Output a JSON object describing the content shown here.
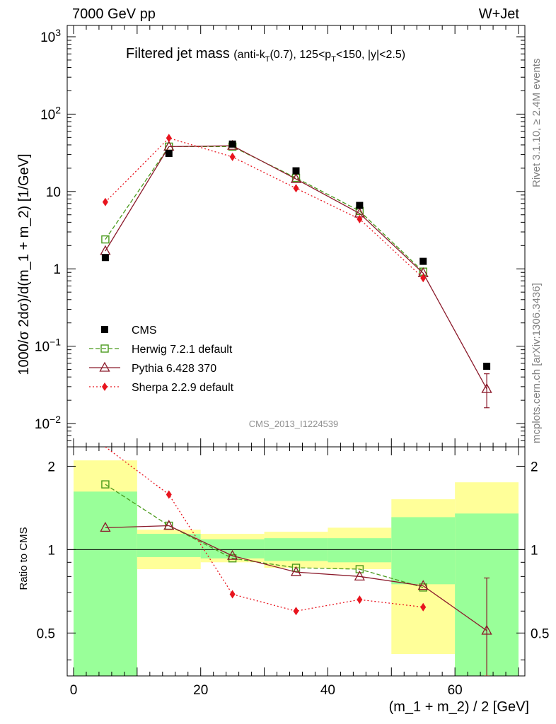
{
  "header": {
    "left": "7000 GeV pp",
    "right": "W+Jet"
  },
  "title": {
    "main": "Filtered jet mass",
    "sub_parts": [
      "(anti-k",
      "T",
      "(0.7), 125<p",
      "T",
      "<150, |y|<2.5)"
    ]
  },
  "side_labels": {
    "rivet": "Rivet 3.1.10, ≥ 2.4M events",
    "mcplots": "mcplots.cern.ch [arXiv:1306.3436]"
  },
  "watermark": "CMS_2013_I1224539",
  "axes": {
    "ylabel_main": "1000/σ 2dσ)/d(m_1 + m_2) [1/GeV]",
    "ylabel_ratio": "Ratio to CMS",
    "xlabel": "(m_1 + m_2) / 2 [GeV]",
    "x_ticks": [
      "0",
      "20",
      "40",
      "60"
    ],
    "main_ticks": [
      {
        "base": "10",
        "exp": "3"
      },
      {
        "base": "10",
        "exp": "2"
      },
      {
        "base": "10",
        "exp": ""
      },
      {
        "base": "1",
        "exp": ""
      },
      {
        "base": "10",
        "exp": "−1"
      },
      {
        "base": "10",
        "exp": "−2"
      }
    ],
    "ratio_ticks": [
      "2",
      "1",
      "0.5"
    ]
  },
  "legend": [
    {
      "label": "CMS"
    },
    {
      "label": "Herwig 7.2.1 default"
    },
    {
      "label": "Pythia 6.428 370"
    },
    {
      "label": "Sherpa 2.2.9 default"
    }
  ],
  "colors": {
    "cms": "#000000",
    "herwig": "#4a9a1c",
    "pythia": "#8b1a2b",
    "sherpa": "#e8141e",
    "band_inner": "#99ff99",
    "band_outer": "#ffff99"
  },
  "chart_data": {
    "type": "line",
    "yscale_main": "log",
    "yscale_ratio": "log",
    "xlim": [
      -1,
      71
    ],
    "ylim_main": [
      0.005,
      1400
    ],
    "ylim_ratio": [
      0.35,
      2.35
    ],
    "x": [
      5,
      15,
      25,
      35,
      45,
      55,
      65
    ],
    "series": [
      {
        "name": "CMS",
        "values": [
          1.4,
          31,
          41,
          18.5,
          6.6,
          1.25,
          0.055
        ]
      },
      {
        "name": "Herwig 7.2.1 default",
        "values": [
          2.4,
          38,
          38,
          15,
          5.6,
          0.92,
          null
        ]
      },
      {
        "name": "Pythia 6.428 370",
        "values": [
          1.7,
          38,
          39,
          14.5,
          5.2,
          0.88,
          0.028
        ],
        "error_last": [
          0.016,
          0.044
        ]
      },
      {
        "name": "Sherpa 2.2.9 default",
        "values": [
          7.3,
          49,
          28,
          11,
          4.4,
          0.76,
          null
        ]
      }
    ],
    "ratio_series": [
      {
        "name": "Herwig 7.2.1 default",
        "values": [
          1.72,
          1.22,
          0.93,
          0.86,
          0.85,
          0.73,
          null
        ]
      },
      {
        "name": "Pythia 6.428 370",
        "values": [
          1.2,
          1.22,
          0.95,
          0.83,
          0.8,
          0.74,
          0.51
        ],
        "error_last": [
          0.33,
          0.79
        ]
      },
      {
        "name": "Sherpa 2.2.9 default",
        "values": [
          5.2,
          1.58,
          0.69,
          0.6,
          0.66,
          0.62,
          null
        ]
      }
    ],
    "ratio_bands": [
      {
        "x0": 0,
        "x1": 10,
        "inner": [
          0.35,
          1.62
        ],
        "outer": [
          0.35,
          2.1
        ]
      },
      {
        "x0": 10,
        "x1": 20,
        "inner": [
          0.94,
          1.14
        ],
        "outer": [
          0.85,
          1.18
        ]
      },
      {
        "x0": 20,
        "x1": 30,
        "inner": [
          0.93,
          1.09
        ],
        "outer": [
          0.9,
          1.14
        ]
      },
      {
        "x0": 30,
        "x1": 40,
        "inner": [
          0.91,
          1.1
        ],
        "outer": [
          0.86,
          1.16
        ]
      },
      {
        "x0": 40,
        "x1": 50,
        "inner": [
          0.9,
          1.1
        ],
        "outer": [
          0.85,
          1.2
        ]
      },
      {
        "x0": 50,
        "x1": 60,
        "inner": [
          0.75,
          1.31
        ],
        "outer": [
          0.42,
          1.52
        ]
      },
      {
        "x0": 60,
        "x1": 70,
        "inner": [
          0.35,
          1.35
        ],
        "outer": [
          0.35,
          1.75
        ]
      }
    ]
  }
}
